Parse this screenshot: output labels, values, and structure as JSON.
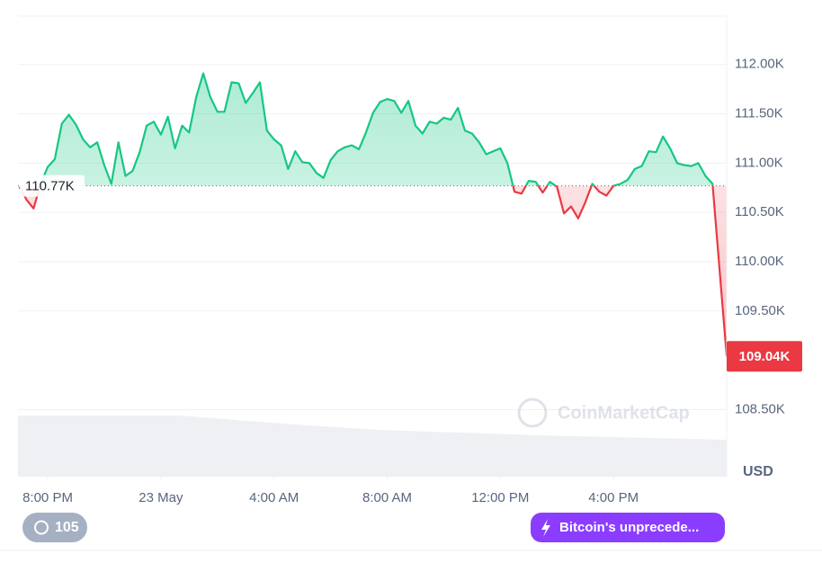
{
  "chart_data": {
    "type": "line",
    "x": [
      -60,
      -45,
      -30,
      -15,
      0,
      15,
      30,
      45,
      60,
      75,
      90,
      105,
      120,
      135,
      150,
      165,
      180,
      195,
      210,
      225,
      240,
      255,
      270,
      285,
      300,
      315,
      330,
      345,
      360,
      375,
      390,
      405,
      420,
      435,
      450,
      465,
      480,
      495,
      510,
      525,
      540,
      555,
      570,
      585,
      600,
      615,
      630,
      645,
      660,
      675,
      690,
      705,
      720,
      735,
      750,
      765,
      780,
      795,
      810,
      825,
      840,
      855,
      870,
      885,
      900,
      915,
      930,
      945,
      960,
      975,
      990,
      1005,
      1020,
      1035,
      1050,
      1065,
      1080,
      1095,
      1110,
      1125,
      1140,
      1155,
      1170,
      1185,
      1200,
      1215,
      1230,
      1245,
      1260,
      1275,
      1290,
      1305,
      1320,
      1335,
      1350,
      1365,
      1380,
      1395,
      1410,
      1425,
      1440
    ],
    "series": [
      {
        "name": "USD",
        "color": "#16c784",
        "values": [
          110.76,
          110.63,
          110.54,
          110.79,
          110.96,
          111.04,
          111.4,
          111.49,
          111.39,
          111.24,
          111.16,
          111.21,
          110.98,
          110.79,
          111.21,
          110.87,
          110.92,
          111.11,
          111.38,
          111.42,
          111.29,
          111.47,
          111.15,
          111.38,
          111.31,
          111.67,
          111.91,
          111.67,
          111.52,
          111.52,
          111.82,
          111.81,
          111.61,
          111.71,
          111.82,
          111.33,
          111.24,
          111.18,
          110.94,
          111.12,
          111.01,
          111.0,
          110.9,
          110.85,
          111.03,
          111.12,
          111.16,
          111.18,
          111.14,
          111.31,
          111.51,
          111.62,
          111.65,
          111.63,
          111.51,
          111.63,
          111.38,
          111.3,
          111.42,
          111.4,
          111.46,
          111.44,
          111.56,
          111.33,
          111.3,
          111.21,
          111.09,
          111.12,
          111.15,
          111.0,
          110.71,
          110.69,
          110.82,
          110.81,
          110.7,
          110.81,
          110.76,
          110.49,
          110.56,
          110.44,
          110.6,
          110.79,
          110.71,
          110.67,
          110.77,
          110.79,
          110.83,
          110.94,
          110.97,
          111.12,
          111.11,
          111.27,
          111.15,
          111.0,
          110.98,
          110.97,
          111.0,
          110.87,
          110.79,
          109.92,
          109.04
        ]
      }
    ],
    "down_color": "#ea3943",
    "baseline": {
      "value": 110.77,
      "label": "110.77K"
    },
    "last_price": {
      "value": 109.04,
      "label": "109.04K"
    },
    "y_unit": "USD",
    "xlim": [
      -63,
      1440
    ],
    "xticks": [
      {
        "value": 0,
        "label": "8:00 PM"
      },
      {
        "value": 240,
        "label": "23 May"
      },
      {
        "value": 480,
        "label": "4:00 AM"
      },
      {
        "value": 720,
        "label": "8:00 AM"
      },
      {
        "value": 960,
        "label": "12:00 PM"
      },
      {
        "value": 1200,
        "label": "4:00 PM"
      }
    ],
    "ylim": [
      107.82,
      112.49
    ],
    "yticks": [
      {
        "value": 108.5,
        "label": "108.50K"
      },
      {
        "value": 109.5,
        "label": "109.50K"
      },
      {
        "value": 110,
        "label": "110.00K"
      },
      {
        "value": 110.5,
        "label": "110.50K"
      },
      {
        "value": 111,
        "label": "111.00K"
      },
      {
        "value": 111.5,
        "label": "111.50K"
      },
      {
        "value": 112,
        "label": "112.00K"
      }
    ],
    "grid": true
  },
  "watermark": "CoinMarketCap",
  "history_badge": "105",
  "news_pill": "Bitcoin's unprecede..."
}
